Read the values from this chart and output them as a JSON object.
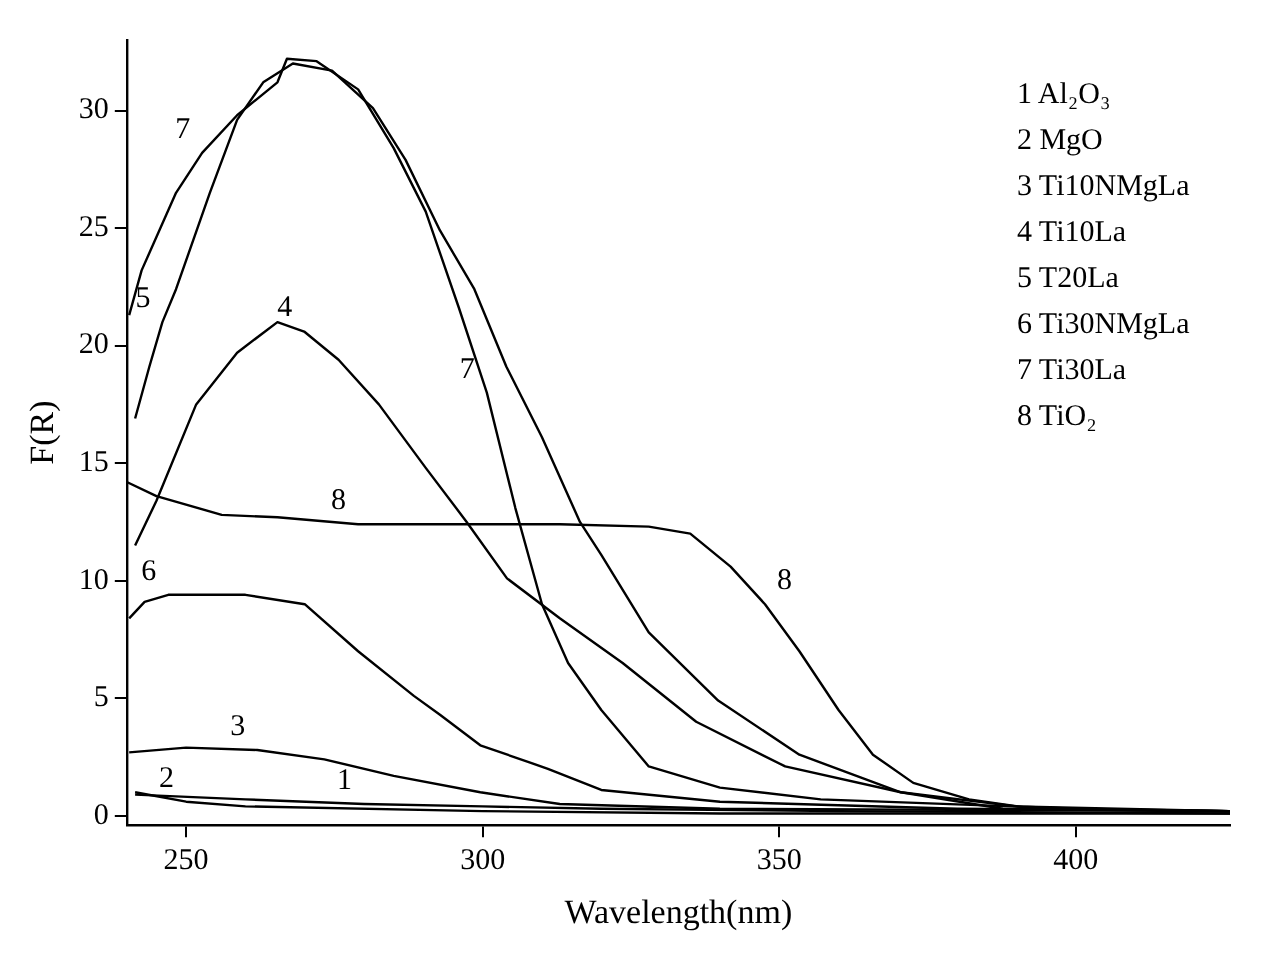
{
  "chart_data": {
    "type": "line",
    "xlabel": "Wavelength(nm)",
    "ylabel": "F(R)",
    "xlim": [
      240,
      426
    ],
    "xticks": [
      250,
      300,
      350,
      400
    ],
    "ylim": [
      -0.4,
      33
    ],
    "yticks": [
      0,
      5,
      10,
      15,
      20,
      25,
      30
    ],
    "grid": false,
    "marker": "none",
    "line_style": "solid",
    "series": [
      {
        "color": "#000000",
        "x": [
          241.4,
          260,
          280,
          300,
          320,
          360,
          426
        ],
        "values": [
          0.9,
          0.7,
          0.5,
          0.4,
          0.3,
          0.2,
          0.1
        ]
      },
      {
        "color": "#000000",
        "x": [
          241.4,
          250,
          260,
          300,
          340,
          426
        ],
        "values": [
          1.0,
          0.6,
          0.4,
          0.2,
          0.1,
          0.1
        ]
      },
      {
        "color": "#000000",
        "x": [
          240.4,
          250,
          262,
          273.3,
          285,
          299.6,
          313,
          340,
          426
        ],
        "values": [
          2.7,
          2.9,
          2.8,
          2.4,
          1.7,
          1.0,
          0.5,
          0.3,
          0.2
        ]
      },
      {
        "color": "#000000",
        "x": [
          241.4,
          245,
          251.7,
          258.6,
          265.4,
          269.9,
          275.7,
          282.5,
          290.4,
          297.3,
          304.1,
          313,
          323.6,
          336,
          351,
          370.5,
          390,
          426
        ],
        "values": [
          11.5,
          13.4,
          17.5,
          19.7,
          21.0,
          20.6,
          19.4,
          17.5,
          14.8,
          12.5,
          10.1,
          8.4,
          6.5,
          4.0,
          2.1,
          1.0,
          0.4,
          0.2
        ]
      },
      {
        "color": "#000000",
        "x": [
          241.4,
          243.8,
          246,
          248.3,
          254,
          258.6,
          263,
          268,
          274.6,
          281.5,
          287,
          292.8,
          298.6,
          304,
          310,
          316.4,
          320,
          328,
          339.7,
          353.4,
          370.5,
          387.7,
          426
        ],
        "values": [
          16.9,
          19.1,
          21.0,
          22.4,
          26.5,
          29.6,
          31.2,
          32.0,
          31.7,
          30.1,
          27.9,
          24.9,
          22.4,
          19.1,
          16.1,
          12.5,
          11.1,
          7.8,
          4.9,
          2.6,
          1.0,
          0.3,
          0.2
        ]
      },
      {
        "color": "#000000",
        "x": [
          240.4,
          243,
          247,
          260,
          270,
          279,
          288.4,
          292.8,
          299.6,
          311,
          320,
          340,
          380,
          426
        ],
        "values": [
          8.4,
          9.1,
          9.4,
          9.4,
          9.0,
          7.0,
          5.1,
          4.3,
          3.0,
          2.0,
          1.1,
          0.6,
          0.3,
          0.2
        ]
      },
      {
        "color": "#000000",
        "x": [
          240.4,
          242.5,
          248.3,
          252.7,
          258.6,
          265.4,
          267,
          272,
          279,
          285,
          290.4,
          296,
          300.7,
          305.5,
          310,
          314.4,
          320,
          328,
          340,
          357,
          400,
          426
        ],
        "values": [
          21.3,
          23.2,
          26.5,
          28.2,
          29.8,
          31.2,
          32.2,
          32.1,
          30.9,
          28.4,
          25.7,
          21.6,
          18.0,
          13.1,
          9.0,
          6.5,
          4.5,
          2.1,
          1.2,
          0.7,
          0.3,
          0.2
        ]
      },
      {
        "color": "#000000",
        "x": [
          240,
          245,
          256,
          265.4,
          279,
          300,
          313,
          328,
          335,
          341.8,
          347.6,
          353.4,
          360,
          365.8,
          372.6,
          382,
          393,
          426
        ],
        "values": [
          14.2,
          13.6,
          12.8,
          12.7,
          12.4,
          12.4,
          12.4,
          12.3,
          12.0,
          10.6,
          9.0,
          7.0,
          4.5,
          2.6,
          1.4,
          0.7,
          0.3,
          0.2
        ]
      }
    ],
    "annotations": [
      "1 Al₂O₃",
      "2 MgO",
      "3 Ti10NMgLa",
      "4 Ti10La",
      "5 T20La",
      "6 Ti30NMgLa",
      "7 Ti30La",
      "8 TiO₂",
      {
        "text": "7",
        "x": 252.7,
        "y": 28.2
      },
      {
        "text": "5",
        "x": 246,
        "y": 21.0
      },
      {
        "text": "4",
        "x": 269.9,
        "y": 20.6
      },
      {
        "text": "7",
        "x": 300.7,
        "y": 18.0
      },
      {
        "text": "8",
        "x": 279,
        "y": 12.4
      },
      {
        "text": "8",
        "x": 347.6,
        "y": 9.0
      },
      {
        "text": "6",
        "x": 247,
        "y": 9.4
      },
      {
        "text": "3",
        "x": 262,
        "y": 2.8
      },
      {
        "text": "2",
        "x": 250,
        "y": 0.6
      },
      {
        "text": "1",
        "x": 280,
        "y": 0.5
      }
    ]
  }
}
